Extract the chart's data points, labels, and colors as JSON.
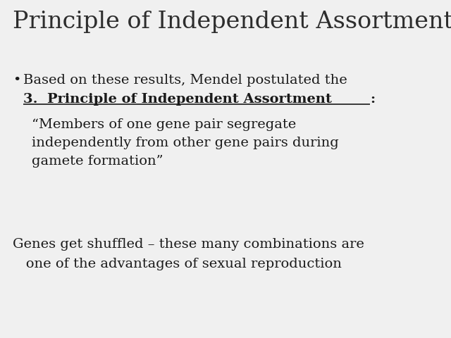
{
  "title": "Principle of Independent Assortment",
  "title_fontsize": 24,
  "title_color": "#2d2d2d",
  "bg_color": "#f0f0f0",
  "text_color": "#1a1a1a",
  "bullet_symbol": "•",
  "bullet_line1": "Based on these results, Mendel postulated the",
  "bullet_bold_underline": "3.  Principle of Independent Assortment",
  "bullet_colon": ":",
  "quote_lines": [
    "“Members of one gene pair segregate",
    "independently from other gene pairs during",
    "gamete formation”"
  ],
  "bottom_line1": "Genes get shuffled – these many combinations are",
  "bottom_line2": "   one of the advantages of sexual reproduction",
  "body_fontsize": 14,
  "title_font": "DejaVu Serif",
  "body_font": "DejaVu Serif"
}
